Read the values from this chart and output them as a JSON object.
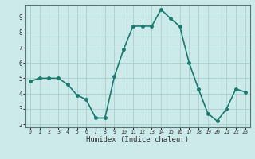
{
  "x": [
    0,
    1,
    2,
    3,
    4,
    5,
    6,
    7,
    8,
    9,
    10,
    11,
    12,
    13,
    14,
    15,
    16,
    17,
    18,
    19,
    20,
    21,
    22,
    23
  ],
  "y": [
    4.8,
    5.0,
    5.0,
    5.0,
    4.6,
    3.9,
    3.6,
    2.4,
    2.4,
    5.1,
    6.9,
    8.4,
    8.4,
    8.4,
    9.5,
    8.9,
    8.4,
    6.0,
    4.3,
    2.7,
    2.2,
    3.0,
    4.3,
    4.1
  ],
  "xlabel": "Humidex (Indice chaleur)",
  "line_color": "#1a7a6e",
  "bg_color": "#cceaea",
  "grid_color": "#aacece",
  "tick_label_color": "#333333",
  "ylim": [
    1.8,
    9.8
  ],
  "xlim": [
    -0.5,
    23.5
  ],
  "yticks": [
    2,
    3,
    4,
    5,
    6,
    7,
    8,
    9
  ],
  "xticks": [
    0,
    1,
    2,
    3,
    4,
    5,
    6,
    7,
    8,
    9,
    10,
    11,
    12,
    13,
    14,
    15,
    16,
    17,
    18,
    19,
    20,
    21,
    22,
    23
  ],
  "marker": "o",
  "marker_size": 2.5,
  "line_width": 1.2
}
